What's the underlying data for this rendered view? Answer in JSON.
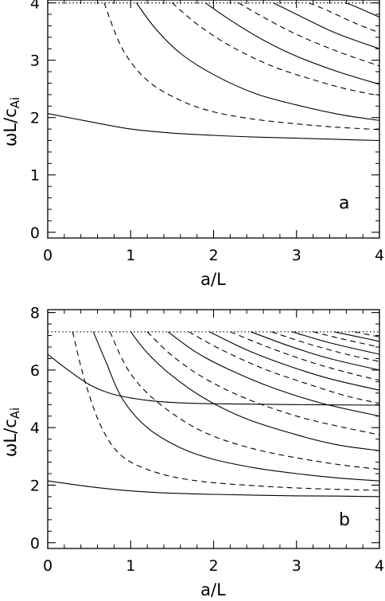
{
  "chart_data": [
    {
      "type": "line",
      "panel_label": "a",
      "xlabel": "a/L",
      "ylabel": "ωL/c",
      "ylabel_sub": "Ai",
      "xlim": [
        0,
        4
      ],
      "ylim": [
        -0.1,
        4.05
      ],
      "xticks": [
        0,
        1,
        2,
        3,
        4
      ],
      "xtick_labels": [
        "0",
        "1",
        "2",
        "3",
        "4"
      ],
      "yticks": [
        0,
        1,
        2,
        3,
        4
      ],
      "ytick_labels": [
        "0",
        "1",
        "2",
        "3",
        "4"
      ],
      "cutoff": 4.0,
      "series": [
        {
          "style": "solid",
          "points": [
            [
              0,
              2.07
            ],
            [
              0.5,
              1.93
            ],
            [
              1,
              1.8
            ],
            [
              1.5,
              1.73
            ],
            [
              2,
              1.69
            ],
            [
              2.5,
              1.66
            ],
            [
              3,
              1.64
            ],
            [
              3.5,
              1.62
            ],
            [
              4,
              1.6
            ]
          ]
        },
        {
          "style": "dashed",
          "points": [
            [
              0.68,
              4.0
            ],
            [
              0.9,
              3.2
            ],
            [
              1.2,
              2.65
            ],
            [
              1.6,
              2.3
            ],
            [
              2,
              2.1
            ],
            [
              2.5,
              1.97
            ],
            [
              3,
              1.89
            ],
            [
              3.5,
              1.83
            ],
            [
              4,
              1.79
            ]
          ]
        },
        {
          "style": "solid",
          "points": [
            [
              1.07,
              4.0
            ],
            [
              1.3,
              3.55
            ],
            [
              1.6,
              3.12
            ],
            [
              2,
              2.75
            ],
            [
              2.5,
              2.42
            ],
            [
              3,
              2.22
            ],
            [
              3.5,
              2.06
            ],
            [
              4,
              1.95
            ]
          ]
        },
        {
          "style": "dashed",
          "points": [
            [
              1.5,
              4.0
            ],
            [
              1.8,
              3.63
            ],
            [
              2.2,
              3.25
            ],
            [
              2.7,
              2.9
            ],
            [
              3.2,
              2.66
            ],
            [
              3.6,
              2.5
            ],
            [
              4,
              2.38
            ]
          ]
        },
        {
          "style": "solid",
          "points": [
            [
              1.9,
              4.0
            ],
            [
              2.2,
              3.7
            ],
            [
              2.6,
              3.35
            ],
            [
              3,
              3.07
            ],
            [
              3.5,
              2.8
            ],
            [
              4,
              2.58
            ]
          ]
        },
        {
          "style": "dashed",
          "points": [
            [
              2.3,
              4.0
            ],
            [
              2.6,
              3.75
            ],
            [
              3,
              3.45
            ],
            [
              3.5,
              3.15
            ],
            [
              4,
              2.9
            ]
          ]
        },
        {
          "style": "solid",
          "points": [
            [
              2.72,
              4.0
            ],
            [
              3,
              3.8
            ],
            [
              3.4,
              3.52
            ],
            [
              3.7,
              3.35
            ],
            [
              4,
              3.2
            ]
          ]
        },
        {
          "style": "dashed",
          "points": [
            [
              3.15,
              4.0
            ],
            [
              3.4,
              3.85
            ],
            [
              3.7,
              3.65
            ],
            [
              4,
              3.48
            ]
          ]
        },
        {
          "style": "solid",
          "points": [
            [
              3.6,
              4.0
            ],
            [
              3.8,
              3.88
            ],
            [
              4,
              3.75
            ]
          ]
        }
      ]
    },
    {
      "type": "line",
      "panel_label": "b",
      "xlabel": "a/L",
      "ylabel": "ωL/c",
      "ylabel_sub": "Ai",
      "xlim": [
        0,
        4
      ],
      "ylim": [
        -0.2,
        8.1
      ],
      "xticks": [
        0,
        1,
        2,
        3,
        4
      ],
      "xtick_labels": [
        "0",
        "1",
        "2",
        "3",
        "4"
      ],
      "yticks": [
        0,
        2,
        4,
        6,
        8
      ],
      "ytick_labels": [
        "0",
        "2",
        "4",
        "6",
        "8"
      ],
      "cutoff": 7.33,
      "series": [
        {
          "style": "solid",
          "points": [
            [
              0,
              2.15
            ],
            [
              0.5,
              1.95
            ],
            [
              1,
              1.8
            ],
            [
              1.5,
              1.72
            ],
            [
              2,
              1.68
            ],
            [
              2.5,
              1.65
            ],
            [
              3,
              1.63
            ],
            [
              3.5,
              1.62
            ],
            [
              4,
              1.6
            ]
          ]
        },
        {
          "style": "solid",
          "points": [
            [
              0,
              6.55
            ],
            [
              0.2,
              6.1
            ],
            [
              0.5,
              5.5
            ],
            [
              0.8,
              5.15
            ],
            [
              1.2,
              4.95
            ],
            [
              1.6,
              4.86
            ],
            [
              2,
              4.83
            ],
            [
              3,
              4.8
            ],
            [
              4,
              4.78
            ]
          ]
        },
        {
          "style": "dashed",
          "points": [
            [
              0.3,
              7.33
            ],
            [
              0.45,
              5.6
            ],
            [
              0.65,
              4.0
            ],
            [
              0.9,
              3.0
            ],
            [
              1.3,
              2.45
            ],
            [
              1.8,
              2.15
            ],
            [
              2.5,
              1.98
            ],
            [
              3.2,
              1.88
            ],
            [
              4,
              1.82
            ]
          ]
        },
        {
          "style": "solid",
          "points": [
            [
              0.55,
              7.33
            ],
            [
              0.7,
              6.3
            ],
            [
              0.9,
              5.0
            ],
            [
              1.2,
              4.0
            ],
            [
              1.6,
              3.3
            ],
            [
              2,
              2.9
            ],
            [
              2.5,
              2.6
            ],
            [
              3,
              2.4
            ],
            [
              3.5,
              2.25
            ],
            [
              4,
              2.15
            ]
          ]
        },
        {
          "style": "dashed",
          "points": [
            [
              0.75,
              7.33
            ],
            [
              0.95,
              6.1
            ],
            [
              1.2,
              5.2
            ],
            [
              1.6,
              4.3
            ],
            [
              2,
              3.7
            ],
            [
              2.5,
              3.25
            ],
            [
              3,
              2.95
            ],
            [
              3.5,
              2.72
            ],
            [
              4,
              2.55
            ]
          ]
        },
        {
          "style": "solid",
          "points": [
            [
              1.0,
              7.33
            ],
            [
              1.2,
              6.6
            ],
            [
              1.5,
              5.8
            ],
            [
              1.9,
              5.0
            ],
            [
              2.4,
              4.3
            ],
            [
              3,
              3.75
            ],
            [
              3.5,
              3.4
            ],
            [
              4,
              3.2
            ]
          ]
        },
        {
          "style": "dashed",
          "points": [
            [
              1.2,
              7.33
            ],
            [
              1.5,
              6.5
            ],
            [
              1.9,
              5.7
            ],
            [
              2.4,
              5.0
            ],
            [
              3,
              4.4
            ],
            [
              3.5,
              4.05
            ],
            [
              4,
              3.75
            ]
          ]
        },
        {
          "style": "solid",
          "points": [
            [
              1.45,
              7.33
            ],
            [
              1.8,
              6.6
            ],
            [
              2.2,
              6.0
            ],
            [
              2.7,
              5.4
            ],
            [
              3.3,
              4.85
            ],
            [
              4,
              4.4
            ]
          ]
        },
        {
          "style": "dashed",
          "points": [
            [
              1.7,
              7.33
            ],
            [
              2.1,
              6.7
            ],
            [
              2.6,
              6.05
            ],
            [
              3.1,
              5.55
            ],
            [
              3.6,
              5.1
            ],
            [
              4,
              4.85
            ]
          ]
        },
        {
          "style": "solid",
          "points": [
            [
              1.95,
              7.33
            ],
            [
              2.4,
              6.7
            ],
            [
              2.9,
              6.15
            ],
            [
              3.4,
              5.7
            ],
            [
              4,
              5.3
            ]
          ]
        },
        {
          "style": "dashed",
          "points": [
            [
              2.2,
              7.33
            ],
            [
              2.7,
              6.75
            ],
            [
              3.2,
              6.25
            ],
            [
              3.7,
              5.85
            ],
            [
              4,
              5.65
            ]
          ]
        },
        {
          "style": "solid",
          "points": [
            [
              2.45,
              7.33
            ],
            [
              2.9,
              6.85
            ],
            [
              3.4,
              6.4
            ],
            [
              4,
              6.0
            ]
          ]
        },
        {
          "style": "dashed",
          "points": [
            [
              2.7,
              7.33
            ],
            [
              3.1,
              6.95
            ],
            [
              3.6,
              6.55
            ],
            [
              4,
              6.3
            ]
          ]
        },
        {
          "style": "solid",
          "points": [
            [
              2.95,
              7.33
            ],
            [
              3.4,
              6.95
            ],
            [
              4,
              6.55
            ]
          ]
        },
        {
          "style": "dashed",
          "points": [
            [
              3.2,
              7.33
            ],
            [
              3.6,
              7.05
            ],
            [
              4,
              6.8
            ]
          ]
        },
        {
          "style": "solid",
          "points": [
            [
              3.45,
              7.33
            ],
            [
              3.75,
              7.15
            ],
            [
              4,
              7.0
            ]
          ]
        },
        {
          "style": "dashed",
          "points": [
            [
              3.7,
              7.33
            ],
            [
              4,
              7.15
            ]
          ]
        }
      ]
    }
  ]
}
